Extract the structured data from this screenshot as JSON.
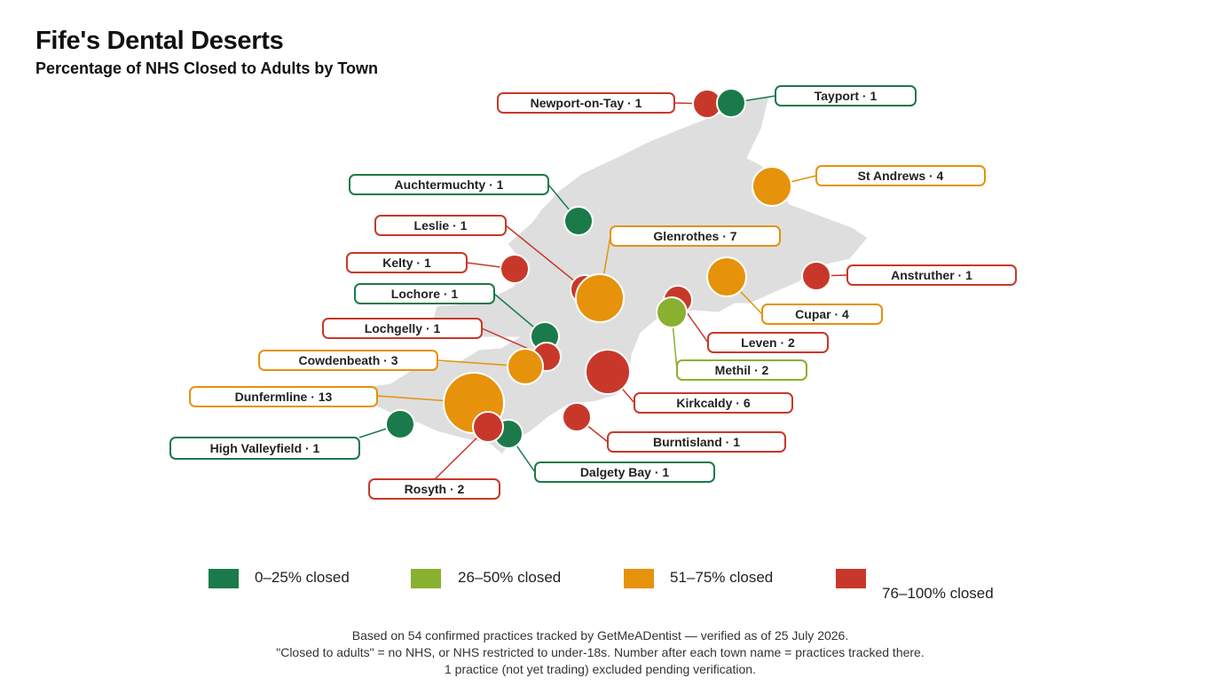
{
  "title": "Fife's Dental Deserts",
  "subtitle": "Percentage of NHS Closed to Adults by Town",
  "colors": {
    "green": "#1a7a4a",
    "lightgreen": "#8ab030",
    "orange": "#e6920a",
    "red": "#c8382a",
    "land": "#dedede"
  },
  "legend": [
    {
      "label": "0–25% closed",
      "color": "green"
    },
    {
      "label": "26–50% closed",
      "color": "lightgreen"
    },
    {
      "label": "51–75% closed",
      "color": "orange"
    },
    {
      "label": "76–100% closed",
      "color": "red"
    }
  ],
  "towns": [
    {
      "name": "Newport-on-Tay",
      "practices": 1,
      "band": "red"
    },
    {
      "name": "Tayport",
      "practices": 1,
      "band": "green"
    },
    {
      "name": "St Andrews",
      "practices": 4,
      "band": "orange"
    },
    {
      "name": "Auchtermuchty",
      "practices": 1,
      "band": "green"
    },
    {
      "name": "Leslie",
      "practices": 1,
      "band": "red"
    },
    {
      "name": "Glenrothes",
      "practices": 7,
      "band": "orange"
    },
    {
      "name": "Kelty",
      "practices": 1,
      "band": "red"
    },
    {
      "name": "Anstruther",
      "practices": 1,
      "band": "red"
    },
    {
      "name": "Lochore",
      "practices": 1,
      "band": "green"
    },
    {
      "name": "Cupar",
      "practices": 4,
      "band": "orange"
    },
    {
      "name": "Lochgelly",
      "practices": 1,
      "band": "red"
    },
    {
      "name": "Leven",
      "practices": 2,
      "band": "red"
    },
    {
      "name": "Cowdenbeath",
      "practices": 3,
      "band": "orange"
    },
    {
      "name": "Methil",
      "practices": 2,
      "band": "lightgreen"
    },
    {
      "name": "Dunfermline",
      "practices": 13,
      "band": "orange"
    },
    {
      "name": "Kirkcaldy",
      "practices": 6,
      "band": "red"
    },
    {
      "name": "High Valleyfield",
      "practices": 1,
      "band": "green"
    },
    {
      "name": "Burntisland",
      "practices": 1,
      "band": "red"
    },
    {
      "name": "Dalgety Bay",
      "practices": 1,
      "band": "green"
    },
    {
      "name": "Rosyth",
      "practices": 2,
      "band": "red"
    }
  ],
  "footnotes": [
    "Based on 54 confirmed practices tracked by GetMeADentist — verified as of 25 July 2026.",
    "\"Closed to adults\" = no NHS, or NHS restricted to under-18s. Number after each town name = practices tracked there.",
    "1 practice (not yet trading) excluded pending verification."
  ]
}
